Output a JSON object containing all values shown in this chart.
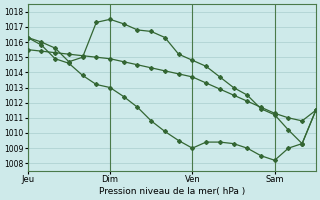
{
  "background_color": "#ceeaea",
  "grid_color": "#aacece",
  "line_color": "#336633",
  "marker_color": "#336633",
  "xlabel": "Pression niveau de la mer( hPa )",
  "ylim": [
    1007.5,
    1018.5
  ],
  "yticks": [
    1008,
    1009,
    1010,
    1011,
    1012,
    1013,
    1014,
    1015,
    1016,
    1017,
    1018
  ],
  "xlim": [
    0,
    84
  ],
  "xtick_positions": [
    0,
    24,
    48,
    72
  ],
  "xtick_labels": [
    "Jeu",
    "Dim",
    "Ven",
    "Sam"
  ],
  "vline_positions": [
    0,
    24,
    48,
    72
  ],
  "series_nearly_straight_x": [
    0,
    4,
    8,
    12,
    16,
    20,
    24,
    28,
    32,
    36,
    40,
    44,
    48,
    52,
    56,
    60,
    64,
    68,
    72,
    76,
    80,
    84
  ],
  "series_nearly_straight_y": [
    1015.5,
    1015.4,
    1015.3,
    1015.2,
    1015.1,
    1015.0,
    1014.9,
    1014.7,
    1014.5,
    1014.3,
    1014.1,
    1013.9,
    1013.7,
    1013.3,
    1012.9,
    1012.5,
    1012.1,
    1011.7,
    1011.3,
    1011.0,
    1010.8,
    1011.5
  ],
  "series_jagged_x": [
    0,
    4,
    8,
    12,
    16,
    20,
    24,
    28,
    32,
    36,
    40,
    44,
    48,
    52,
    56,
    60,
    64,
    68,
    72,
    76,
    80,
    84
  ],
  "series_jagged_y": [
    1016.3,
    1016.0,
    1015.6,
    1014.7,
    1015.0,
    1017.3,
    1017.5,
    1017.2,
    1016.8,
    1016.7,
    1016.3,
    1015.2,
    1014.8,
    1014.4,
    1013.7,
    1013.0,
    1012.5,
    1011.6,
    1011.2,
    1010.2,
    1009.3,
    1011.5
  ],
  "series_lower_x": [
    0,
    4,
    8,
    12,
    16,
    20,
    24,
    28,
    32,
    36,
    40,
    44,
    48,
    52,
    56,
    60,
    64,
    68,
    72,
    76,
    80,
    84
  ],
  "series_lower_y": [
    1016.3,
    1015.8,
    1014.9,
    1014.6,
    1013.8,
    1013.2,
    1013.0,
    1012.4,
    1011.7,
    1010.8,
    1010.1,
    1009.5,
    1009.0,
    1009.4,
    1009.4,
    1009.3,
    1009.0,
    1008.5,
    1008.2,
    1009.0,
    1009.3,
    1011.5
  ]
}
